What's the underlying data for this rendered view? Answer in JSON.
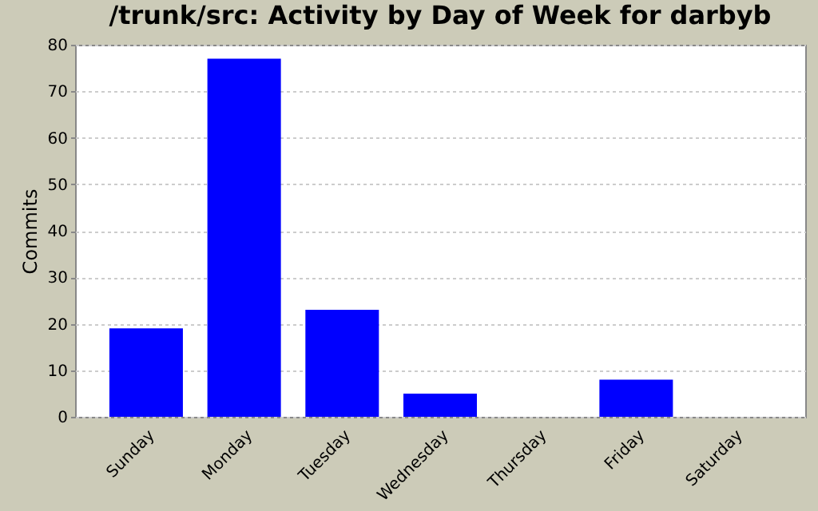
{
  "chart_data": {
    "type": "bar",
    "title": "/trunk/src: Activity by Day of Week for darbyb",
    "ylabel": "Commits",
    "categories": [
      "Sunday",
      "Monday",
      "Tuesday",
      "Wednesday",
      "Thursday",
      "Friday",
      "Saturday"
    ],
    "values": [
      19,
      77,
      23,
      5,
      0,
      8,
      0
    ],
    "color": "#0000ff",
    "ylim": [
      0,
      80
    ],
    "yticks": [
      0,
      10,
      20,
      30,
      40,
      50,
      60,
      70,
      80
    ],
    "grid": "y"
  }
}
